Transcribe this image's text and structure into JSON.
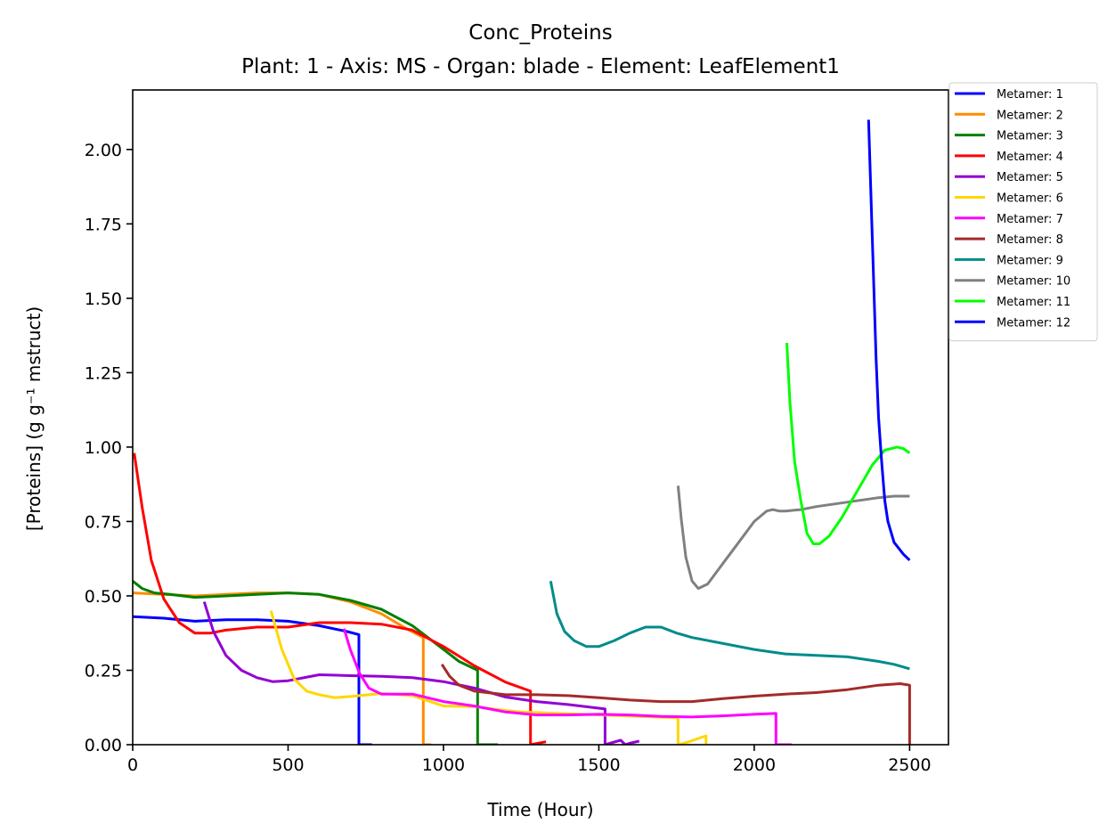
{
  "chart_data": {
    "type": "line",
    "title": "Conc_Proteins",
    "subtitle": "Plant: 1 - Axis: MS - Organ: blade - Element: LeafElement1",
    "xlabel": "Time (Hour)",
    "ylabel": "[Proteins] (g g⁻¹ mstruct)",
    "xlim": [
      0,
      2625
    ],
    "ylim": [
      0,
      2.2
    ],
    "xticks": [
      0,
      500,
      1000,
      1500,
      2000,
      2500
    ],
    "xtick_labels": [
      "0",
      "500",
      "1000",
      "1500",
      "2000",
      "2500"
    ],
    "yticks": [
      0,
      0.25,
      0.5,
      0.75,
      1.0,
      1.25,
      1.5,
      1.75,
      2.0
    ],
    "ytick_labels": [
      "0.00",
      "0.25",
      "0.50",
      "0.75",
      "1.00",
      "1.25",
      "1.50",
      "1.75",
      "2.00"
    ],
    "grid": false,
    "legend_position": "outside-top-right",
    "series": [
      {
        "name": "Metamer: 1",
        "color": "#0000ff",
        "x": [
          0,
          100,
          200,
          300,
          400,
          500,
          600,
          690,
          728,
          728,
          770
        ],
        "y": [
          0.43,
          0.425,
          0.415,
          0.42,
          0.42,
          0.415,
          0.4,
          0.38,
          0.37,
          0.0,
          0.0
        ]
      },
      {
        "name": "Metamer: 2",
        "color": "#ff8c00",
        "x": [
          0,
          100,
          200,
          300,
          400,
          500,
          600,
          700,
          800,
          880,
          935,
          935,
          960
        ],
        "y": [
          0.51,
          0.505,
          0.5,
          0.505,
          0.51,
          0.51,
          0.505,
          0.48,
          0.44,
          0.39,
          0.36,
          0.0,
          0.0
        ]
      },
      {
        "name": "Metamer: 3",
        "color": "#008000",
        "x": [
          0,
          30,
          70,
          120,
          200,
          300,
          400,
          500,
          600,
          700,
          800,
          900,
          1000,
          1050,
          1110,
          1110,
          1175
        ],
        "y": [
          0.55,
          0.525,
          0.51,
          0.505,
          0.495,
          0.5,
          0.505,
          0.51,
          0.505,
          0.485,
          0.455,
          0.4,
          0.32,
          0.28,
          0.25,
          0.0,
          0.0
        ]
      },
      {
        "name": "Metamer: 4",
        "color": "#ff0000",
        "x": [
          5,
          30,
          60,
          100,
          150,
          200,
          250,
          300,
          400,
          500,
          600,
          700,
          800,
          900,
          1000,
          1100,
          1200,
          1280,
          1280,
          1330
        ],
        "y": [
          0.98,
          0.8,
          0.62,
          0.49,
          0.41,
          0.375,
          0.375,
          0.385,
          0.395,
          0.395,
          0.41,
          0.41,
          0.405,
          0.385,
          0.33,
          0.265,
          0.21,
          0.18,
          0.0,
          0.01
        ]
      },
      {
        "name": "Metamer: 5",
        "color": "#9400d3",
        "x": [
          230,
          260,
          300,
          350,
          400,
          450,
          500,
          600,
          700,
          800,
          900,
          1000,
          1100,
          1200,
          1300,
          1400,
          1520,
          1520,
          1570,
          1585,
          1600,
          1630
        ],
        "y": [
          0.48,
          0.38,
          0.3,
          0.25,
          0.225,
          0.212,
          0.215,
          0.235,
          0.232,
          0.23,
          0.225,
          0.212,
          0.19,
          0.16,
          0.145,
          0.135,
          0.12,
          0.0,
          0.015,
          0.0,
          0.005,
          0.012
        ]
      },
      {
        "name": "Metamer: 6",
        "color": "#ffd700",
        "x": [
          445,
          480,
          520,
          560,
          600,
          650,
          700,
          800,
          900,
          1000,
          1100,
          1200,
          1250,
          1250,
          1755,
          1755,
          1790,
          1845,
          1845
        ],
        "y": [
          0.45,
          0.32,
          0.22,
          0.18,
          0.168,
          0.158,
          0.162,
          0.172,
          0.165,
          0.13,
          0.128,
          0.115,
          0.11,
          0.11,
          0.09,
          0.0,
          0.01,
          0.03,
          0.0
        ]
      },
      {
        "name": "Metamer: 7",
        "color": "#ff00ff",
        "x": [
          680,
          700,
          730,
          760,
          800,
          900,
          1000,
          1100,
          1200,
          1300,
          1400,
          1500,
          1600,
          1700,
          1800,
          1900,
          2000,
          2070,
          2070,
          2120
        ],
        "y": [
          0.39,
          0.32,
          0.24,
          0.19,
          0.17,
          0.17,
          0.145,
          0.13,
          0.11,
          0.1,
          0.1,
          0.102,
          0.1,
          0.095,
          0.093,
          0.097,
          0.102,
          0.105,
          0.0,
          0.0
        ]
      },
      {
        "name": "Metamer: 8",
        "color": "#a52a2a",
        "x": [
          995,
          1020,
          1050,
          1100,
          1200,
          1300,
          1400,
          1500,
          1600,
          1700,
          1800,
          1900,
          2000,
          2100,
          2200,
          2300,
          2400,
          2470,
          2500,
          2500
        ],
        "y": [
          0.27,
          0.23,
          0.2,
          0.18,
          0.168,
          0.168,
          0.165,
          0.158,
          0.15,
          0.145,
          0.145,
          0.155,
          0.163,
          0.17,
          0.175,
          0.185,
          0.2,
          0.205,
          0.2,
          0.0
        ]
      },
      {
        "name": "Metamer: 9",
        "color": "#008b8b",
        "x": [
          1345,
          1365,
          1390,
          1420,
          1460,
          1500,
          1550,
          1600,
          1650,
          1700,
          1750,
          1800,
          1900,
          2000,
          2100,
          2200,
          2300,
          2400,
          2450,
          2500
        ],
        "y": [
          0.55,
          0.44,
          0.38,
          0.35,
          0.33,
          0.33,
          0.35,
          0.375,
          0.395,
          0.395,
          0.375,
          0.36,
          0.34,
          0.32,
          0.305,
          0.3,
          0.295,
          0.28,
          0.27,
          0.255
        ]
      },
      {
        "name": "Metamer: 10",
        "color": "#808080",
        "x": [
          1755,
          1765,
          1780,
          1800,
          1820,
          1850,
          1900,
          1950,
          2000,
          2040,
          2060,
          2080,
          2100,
          2150,
          2200,
          2300,
          2400,
          2450,
          2500
        ],
        "y": [
          0.87,
          0.76,
          0.63,
          0.55,
          0.525,
          0.54,
          0.61,
          0.68,
          0.75,
          0.785,
          0.79,
          0.785,
          0.785,
          0.79,
          0.8,
          0.815,
          0.83,
          0.835,
          0.835
        ]
      },
      {
        "name": "Metamer: 11",
        "color": "#00ff00",
        "x": [
          2105,
          2115,
          2130,
          2150,
          2170,
          2190,
          2210,
          2240,
          2280,
          2330,
          2380,
          2420,
          2460,
          2480,
          2500
        ],
        "y": [
          1.35,
          1.15,
          0.95,
          0.82,
          0.71,
          0.675,
          0.675,
          0.7,
          0.76,
          0.85,
          0.94,
          0.99,
          1.0,
          0.995,
          0.98
        ]
      },
      {
        "name": "Metamer: 12",
        "color": "#0000ff",
        "x": [
          2368,
          2380,
          2392,
          2400,
          2410,
          2420,
          2430,
          2450,
          2480,
          2500
        ],
        "y": [
          2.1,
          1.7,
          1.3,
          1.1,
          0.95,
          0.82,
          0.75,
          0.68,
          0.64,
          0.62
        ]
      }
    ]
  }
}
